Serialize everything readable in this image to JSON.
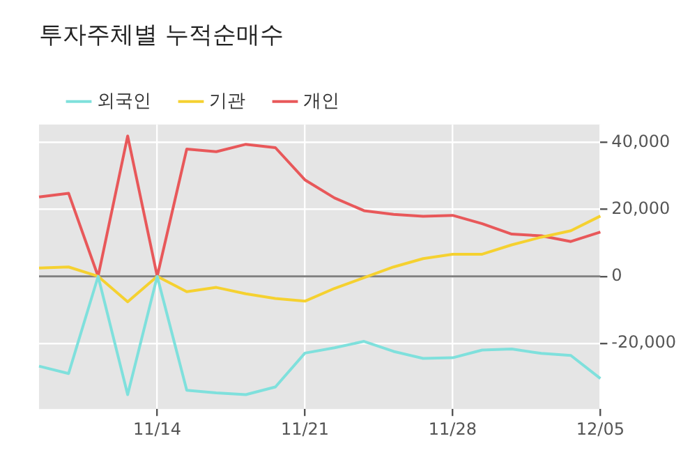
{
  "chart_data": {
    "type": "line",
    "title": "투자주체별 누적순매수",
    "categories": [
      null,
      null,
      null,
      null,
      "11/14",
      null,
      null,
      null,
      null,
      "11/21",
      null,
      null,
      null,
      null,
      "11/28",
      null,
      null,
      null,
      null,
      "12/05"
    ],
    "series": [
      {
        "name": "외국인",
        "color": "#7fe0dc",
        "values": [
          -26800,
          -29000,
          0,
          -35300,
          0,
          -34000,
          -34800,
          -35300,
          -33000,
          -22900,
          -21300,
          -19400,
          -22400,
          -24500,
          -24300,
          -22000,
          -21700,
          -23000,
          -23600,
          -30500
        ]
      },
      {
        "name": "기관",
        "color": "#f5d130",
        "values": [
          2500,
          2800,
          0,
          -7600,
          0,
          -4600,
          -3300,
          -5200,
          -6600,
          -7400,
          -3600,
          -400,
          2800,
          5300,
          6600,
          6600,
          9400,
          11700,
          13600,
          18000
        ]
      },
      {
        "name": "개인",
        "color": "#e8585a",
        "values": [
          23700,
          24800,
          0,
          41900,
          0,
          38000,
          37200,
          39400,
          38400,
          28800,
          23400,
          19600,
          18500,
          17900,
          18200,
          15700,
          12600,
          12100,
          10400,
          13200
        ]
      }
    ],
    "ylim": [
      -39600,
      45300
    ],
    "yticks": [
      {
        "value": -20000,
        "label": "-20,000"
      },
      {
        "value": 0,
        "label": "0"
      },
      {
        "value": 20000,
        "label": "20,000"
      },
      {
        "value": 40000,
        "label": "40,000"
      }
    ],
    "ref_lines": [
      {
        "axis": "y",
        "value": 0,
        "color": "#808080"
      }
    ],
    "grid": true,
    "legend": "top left",
    "marker": "none",
    "line_style": "solid"
  }
}
